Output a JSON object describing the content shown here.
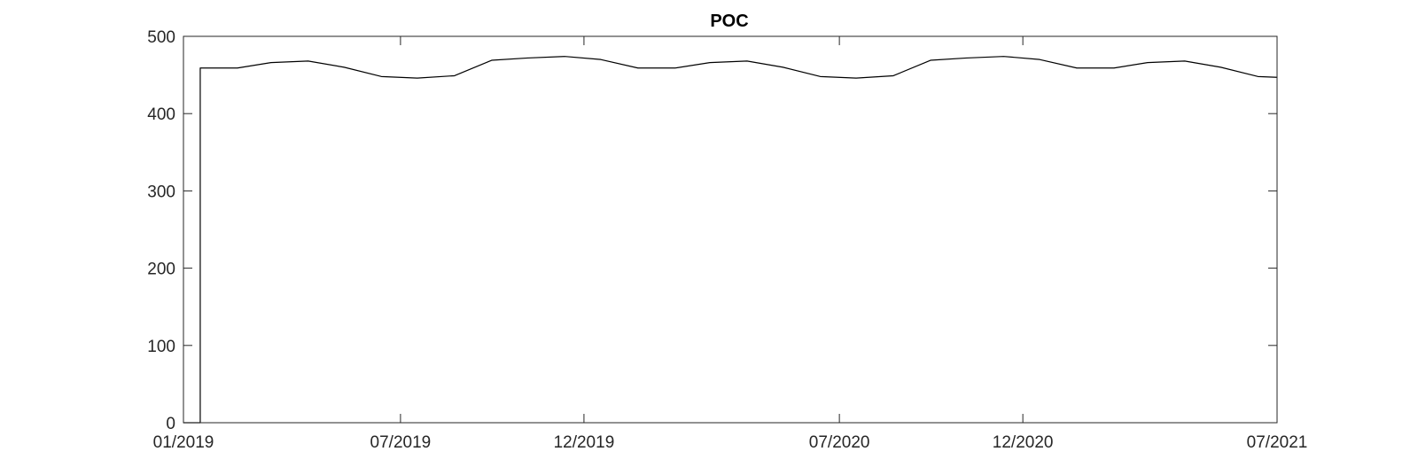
{
  "chart_data": {
    "type": "line",
    "title": "POC",
    "xlabel": "",
    "ylabel": "",
    "grid": false,
    "legend": "none",
    "line_color": "#000000",
    "axis_color": "#262626",
    "xlim": [
      "2019-01-01",
      "2021-07-01"
    ],
    "ylim": [
      0,
      500
    ],
    "xticks": [
      {
        "date": "2019-01-01",
        "label": "01/2019"
      },
      {
        "date": "2019-07-01",
        "label": "07/2019"
      },
      {
        "date": "2019-12-01",
        "label": "12/2019"
      },
      {
        "date": "2020-07-01",
        "label": "07/2020"
      },
      {
        "date": "2020-12-01",
        "label": "12/2020"
      },
      {
        "date": "2021-07-01",
        "label": "07/2021"
      }
    ],
    "yticks": [
      {
        "value": 0,
        "label": "0"
      },
      {
        "value": 100,
        "label": "100"
      },
      {
        "value": 200,
        "label": "200"
      },
      {
        "value": 300,
        "label": "300"
      },
      {
        "value": 400,
        "label": "400"
      },
      {
        "value": 500,
        "label": "500"
      }
    ],
    "series": [
      {
        "x": [
          "2019-01-01",
          "2019-01-15",
          "2019-01-15",
          "2019-02-15",
          "2019-03-15",
          "2019-04-15",
          "2019-05-15",
          "2019-06-15",
          "2019-07-15",
          "2019-08-15",
          "2019-09-15",
          "2019-10-15",
          "2019-11-15",
          "2019-12-15",
          "2020-01-15",
          "2020-02-15",
          "2020-03-15",
          "2020-04-15",
          "2020-05-15",
          "2020-06-15",
          "2020-07-15",
          "2020-08-15",
          "2020-09-15",
          "2020-10-15",
          "2020-11-15",
          "2020-12-15",
          "2021-01-15",
          "2021-02-15",
          "2021-03-15",
          "2021-04-15",
          "2021-05-15",
          "2021-06-15",
          "2021-07-01"
        ],
        "y": [
          0,
          0,
          459,
          459,
          466,
          468,
          460,
          448,
          446,
          449,
          469,
          472,
          474,
          470,
          459,
          459,
          466,
          468,
          460,
          448,
          446,
          449,
          469,
          472,
          474,
          470,
          459,
          459,
          466,
          468,
          460,
          448,
          447
        ]
      }
    ]
  }
}
